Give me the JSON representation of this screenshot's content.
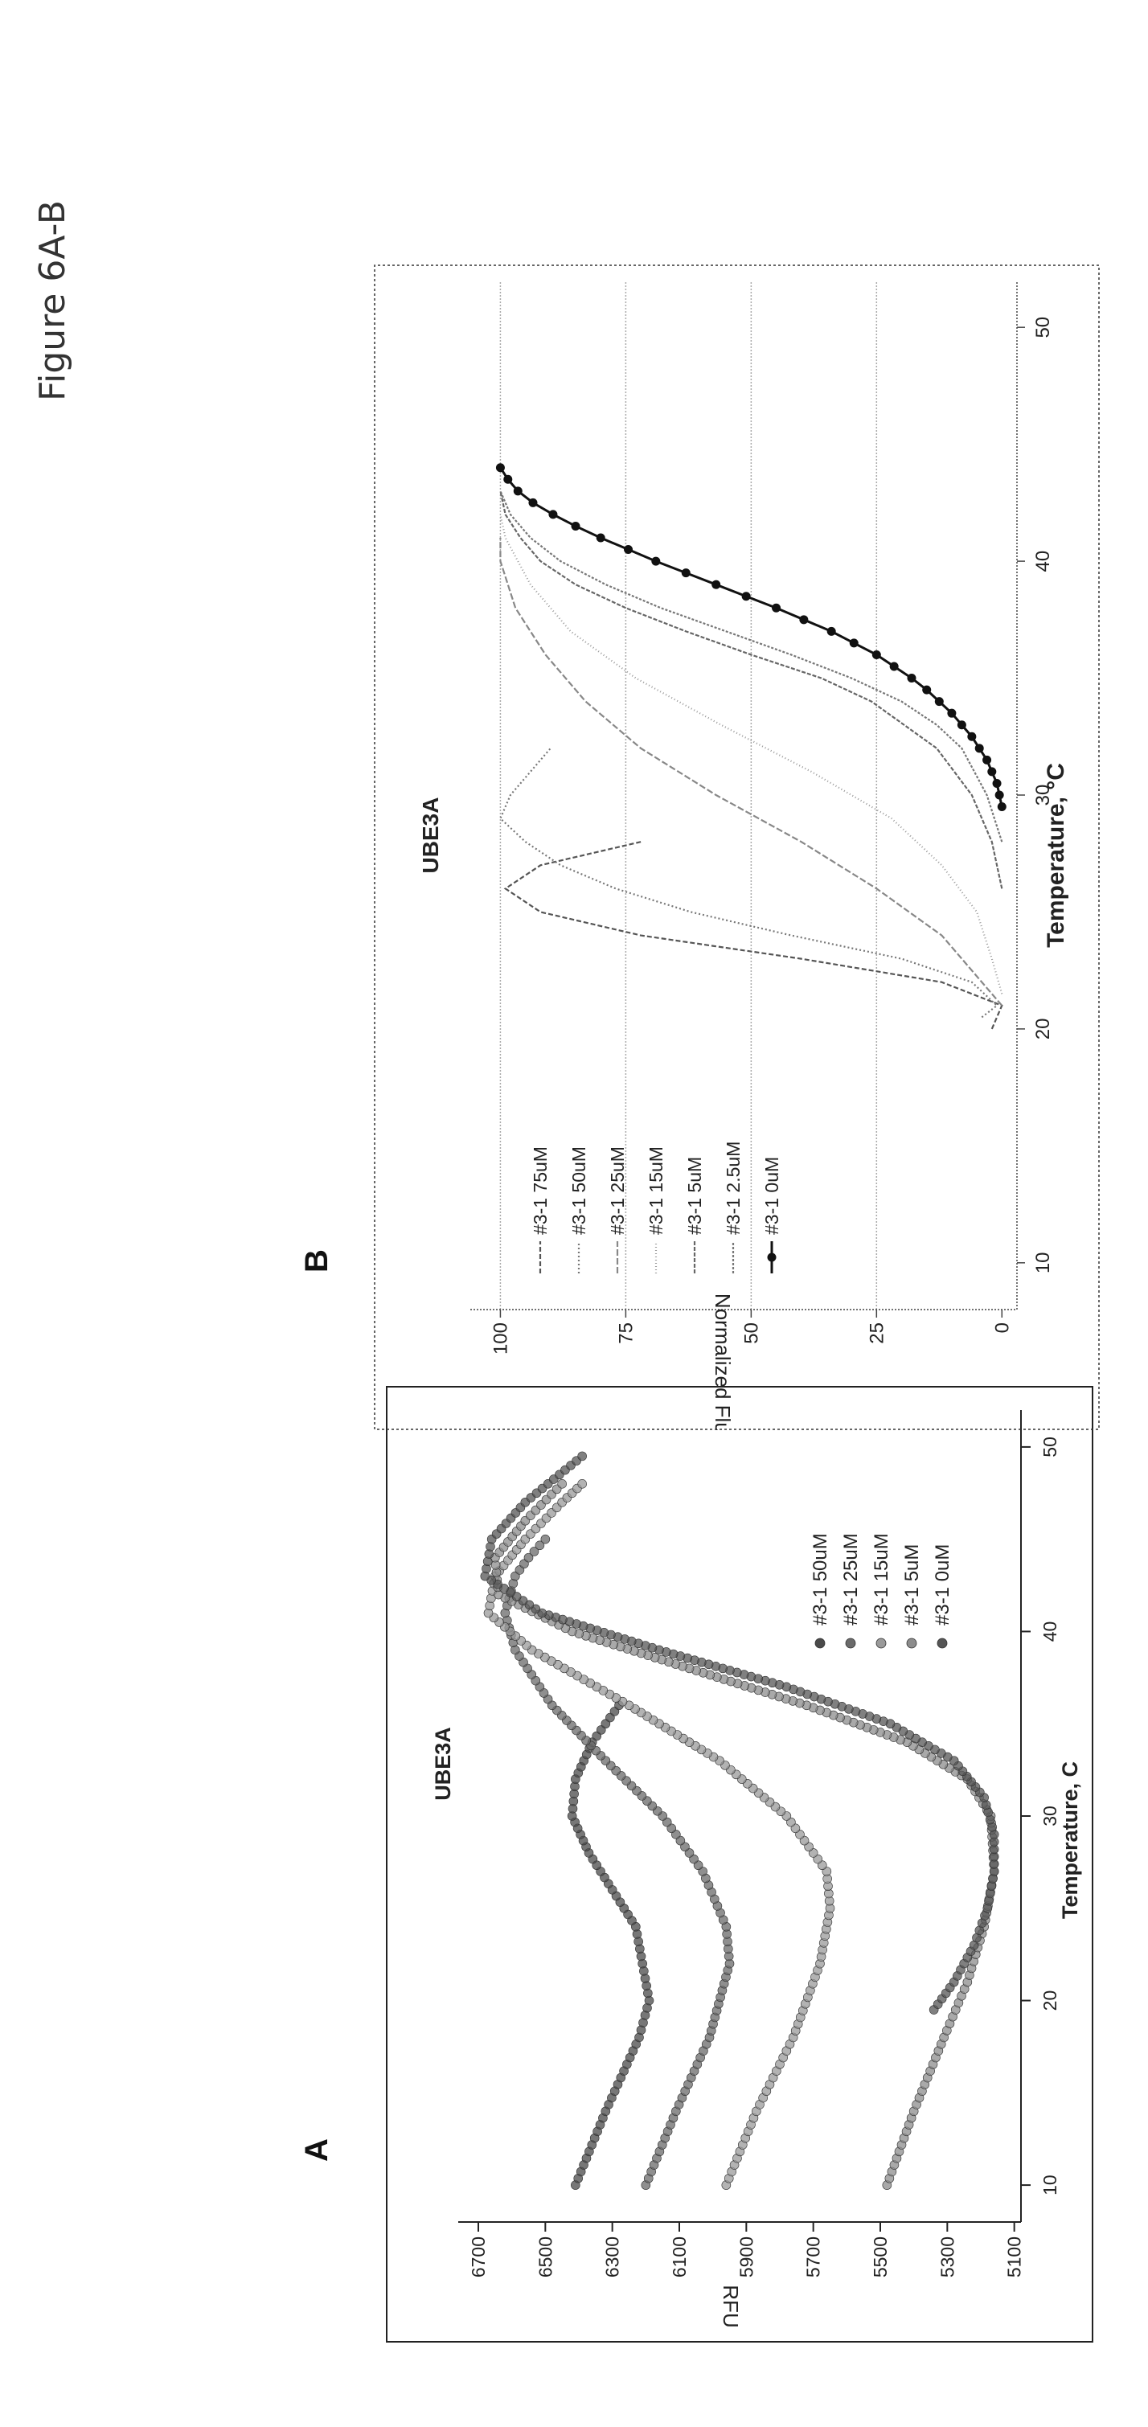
{
  "figure": {
    "caption": "Figure 6A-B"
  },
  "panels": {
    "a_letter": "A",
    "b_letter": "B"
  },
  "chart_data": [
    {
      "type": "scatter",
      "title": "UBE3A",
      "xlabel": "Temperature, C",
      "ylabel": "RFU",
      "xlim": [
        8,
        52
      ],
      "ylim": [
        5080,
        6760
      ],
      "xticks": [
        10,
        20,
        30,
        40,
        50
      ],
      "yticks": [
        5100,
        5300,
        5500,
        5700,
        5900,
        6100,
        6300,
        6500,
        6700
      ],
      "grid": false,
      "legend_position": "bottom-right",
      "series": [
        {
          "name": "#3-1 50uM",
          "color": "#4a4a4a",
          "x": [
            10,
            14,
            18,
            20,
            24,
            28,
            30,
            32,
            34,
            36
          ],
          "y": [
            6410,
            6320,
            6220,
            6190,
            6230,
            6370,
            6420,
            6410,
            6360,
            6280
          ]
        },
        {
          "name": "#3-1 25uM",
          "color": "#6a6a6a",
          "x": [
            10,
            14,
            18,
            22,
            24,
            27,
            30,
            33,
            36,
            39,
            41,
            43,
            44,
            45
          ],
          "y": [
            6200,
            6110,
            6010,
            5950,
            5960,
            6030,
            6150,
            6320,
            6480,
            6590,
            6620,
            6590,
            6550,
            6500
          ]
        },
        {
          "name": "#3-1 15uM",
          "color": "#9a9a9a",
          "x": [
            10,
            14,
            18,
            22,
            25,
            27,
            30,
            33,
            36,
            39,
            41,
            43,
            45,
            47,
            48
          ],
          "y": [
            5960,
            5870,
            5760,
            5680,
            5650,
            5660,
            5780,
            5980,
            6250,
            6540,
            6670,
            6650,
            6560,
            6450,
            6390
          ]
        },
        {
          "name": "#3-1 5uM",
          "color": "#8c8c8c",
          "x": [
            10,
            14,
            18,
            21,
            24,
            27,
            30,
            32,
            34,
            36,
            38,
            40,
            42,
            44,
            46,
            48
          ],
          "y": [
            5480,
            5400,
            5310,
            5240,
            5190,
            5160,
            5170,
            5240,
            5420,
            5720,
            6070,
            6420,
            6640,
            6650,
            6560,
            6450
          ]
        },
        {
          "name": "#3-1 0uM",
          "color": "#555555",
          "x": [
            19.5,
            21,
            23,
            25,
            27,
            29,
            31,
            33,
            35,
            37,
            39,
            41,
            43,
            45,
            47,
            49.5
          ],
          "y": [
            5340,
            5280,
            5220,
            5180,
            5160,
            5160,
            5190,
            5280,
            5470,
            5780,
            6160,
            6510,
            6680,
            6660,
            6560,
            6390
          ]
        }
      ]
    },
    {
      "type": "line",
      "title": "UBE3A",
      "xlabel": "Temperature, °C",
      "ylabel": "Normalized Fluo. (%)",
      "xlim": [
        8,
        52
      ],
      "ylim": [
        -3,
        106
      ],
      "xticks": [
        10,
        20,
        30,
        40,
        50
      ],
      "yticks": [
        0,
        25,
        50,
        75,
        100
      ],
      "grid": true,
      "legend_position": "top-left",
      "series": [
        {
          "name": "#3-1 75uM",
          "color": "#555555",
          "x": [
            20,
            21,
            22,
            23,
            24,
            25,
            26,
            27,
            28
          ],
          "y": [
            2,
            0,
            12,
            40,
            72,
            92,
            99,
            92,
            72
          ]
        },
        {
          "name": "#3-1 50uM",
          "color": "#777777",
          "x": [
            20.5,
            21,
            22,
            23,
            24,
            25,
            26,
            27,
            28,
            29,
            30,
            31,
            32
          ],
          "y": [
            4,
            1,
            6,
            20,
            42,
            62,
            77,
            88,
            95,
            100,
            98,
            94,
            90
          ]
        },
        {
          "name": "#3-1 25uM",
          "color": "#888888",
          "x": [
            21,
            22,
            24,
            26,
            28,
            30,
            32,
            34,
            36,
            38,
            40,
            41
          ],
          "y": [
            0,
            4,
            12,
            25,
            40,
            57,
            72,
            83,
            91,
            97,
            100,
            100
          ]
        },
        {
          "name": "#3-1 15uM",
          "color": "#999999",
          "x": [
            21.5,
            23,
            25,
            27,
            29,
            31,
            33,
            35,
            37,
            39,
            41,
            42
          ],
          "y": [
            0,
            2,
            5,
            12,
            22,
            38,
            56,
            73,
            86,
            94,
            99,
            100
          ]
        },
        {
          "name": "#3-1 5uM",
          "color": "#666666",
          "x": [
            26,
            28,
            30,
            32,
            34,
            35,
            36,
            37,
            38,
            39,
            40,
            41,
            42,
            43
          ],
          "y": [
            0,
            2,
            6,
            13,
            26,
            36,
            50,
            63,
            75,
            85,
            92,
            96,
            99,
            100
          ]
        },
        {
          "name": "#3-1 2.5uM",
          "color": "#777777",
          "x": [
            28,
            30,
            32,
            33,
            34,
            35,
            36,
            37,
            38,
            39,
            40,
            41,
            42,
            43
          ],
          "y": [
            0,
            3,
            8,
            13,
            20,
            30,
            42,
            55,
            68,
            79,
            88,
            94,
            98,
            100
          ]
        },
        {
          "name": "#3-1 0uM",
          "color": "#111111",
          "x": [
            29.5,
            30,
            30.5,
            31,
            31.5,
            32,
            32.5,
            33,
            33.5,
            34,
            34.5,
            35,
            35.5,
            36,
            36.5,
            37,
            37.5,
            38,
            38.5,
            39,
            39.5,
            40,
            40.5,
            41,
            41.5,
            42,
            42.5,
            43,
            43.5,
            44
          ],
          "y": [
            0,
            0.5,
            1,
            2,
            3,
            4.5,
            6,
            8,
            10,
            12.5,
            15,
            18,
            21.5,
            25,
            29.5,
            34,
            39.5,
            45,
            51,
            57,
            63,
            69,
            74.5,
            80,
            85,
            89.5,
            93.5,
            96.5,
            98.5,
            100
          ]
        }
      ]
    }
  ]
}
